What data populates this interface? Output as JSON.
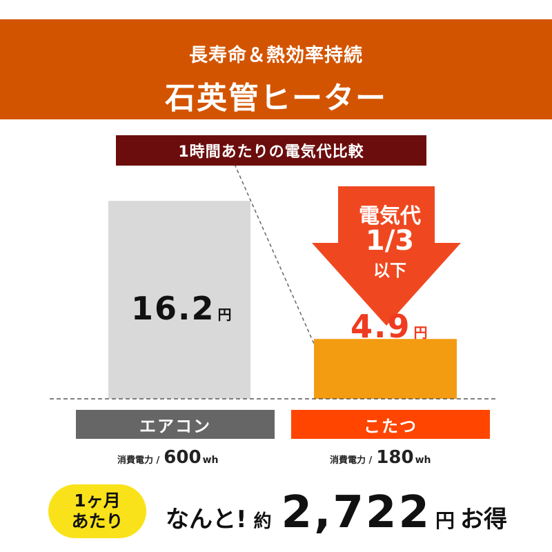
{
  "banner": {
    "subtitle": "長寿命＆熱効率持続",
    "title": "石英管ヒーター"
  },
  "comparison_label": "1時間あたりの電気代比較",
  "arrow": {
    "line1": "電気代",
    "line2": "1/3",
    "line3": "以下"
  },
  "colors": {
    "banner": "#d35400",
    "label_bg": "#6b0d0d",
    "aircon_bar": "#d9d9d9",
    "kotatsu_bar": "#f39c12",
    "aircon_category": "#666666",
    "kotatsu_category": "#ff4500",
    "arrow": "#ef4820",
    "badge": "#f9e21a"
  },
  "chart_data": {
    "type": "bar",
    "title": "1時間あたりの電気代比較",
    "categories": [
      "エアコン",
      "こたつ"
    ],
    "values": [
      16.2,
      4.9
    ],
    "value_labels": [
      "16.2",
      "4.9"
    ],
    "unit": "円",
    "ylim": [
      0,
      19.2
    ],
    "power": [
      {
        "label": "消費電力 /",
        "value": "600",
        "unit": "wh"
      },
      {
        "label": "消費電力 /",
        "value": "180",
        "unit": "wh"
      }
    ]
  },
  "monthly": {
    "badge_line1": "1ヶ月",
    "badge_line2": "あたり",
    "text1": "なんと!",
    "text2": "約",
    "amount": "2,722",
    "unit": "円",
    "text3": "お得"
  }
}
